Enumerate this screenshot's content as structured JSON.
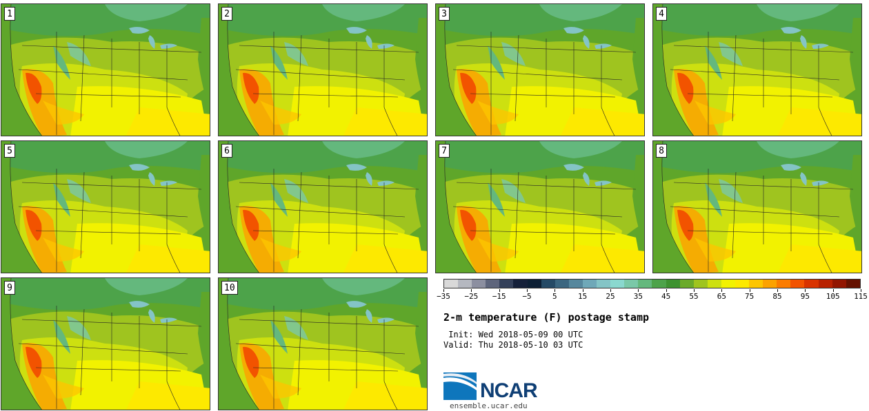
{
  "panels": [
    {
      "label": "1"
    },
    {
      "label": "2"
    },
    {
      "label": "3"
    },
    {
      "label": "4"
    },
    {
      "label": "5"
    },
    {
      "label": "6"
    },
    {
      "label": "7"
    },
    {
      "label": "8"
    },
    {
      "label": "9"
    },
    {
      "label": "10"
    }
  ],
  "colorbar": {
    "colors": [
      "#d9d9d9",
      "#b5b8c0",
      "#8c8fa0",
      "#5e657c",
      "#34405a",
      "#15203a",
      "#0d1f35",
      "#254a66",
      "#3b6680",
      "#56879d",
      "#6fa8b8",
      "#84c4c6",
      "#8ad8cf",
      "#7ac8a8",
      "#64b87d",
      "#4da34a",
      "#3d9230",
      "#6aaa2a",
      "#9fc41f",
      "#cde010",
      "#f2f200",
      "#fde900",
      "#fdc500",
      "#fca200",
      "#fb7c00",
      "#f25300",
      "#d93300",
      "#b82100",
      "#921500",
      "#651100"
    ],
    "tick_labels": [
      "-35",
      "-25",
      "-15",
      "-5",
      "5",
      "15",
      "25",
      "35",
      "45",
      "55",
      "65",
      "75",
      "85",
      "95",
      "105",
      "115"
    ]
  },
  "title": "2-m temperature (F) postage stamp",
  "init": " Init: Wed 2018-05-09 00 UTC",
  "valid": "Valid: Thu 2018-05-10 03 UTC",
  "logo": {
    "text": "NCAR",
    "url": "ensemble.ucar.edu"
  }
}
